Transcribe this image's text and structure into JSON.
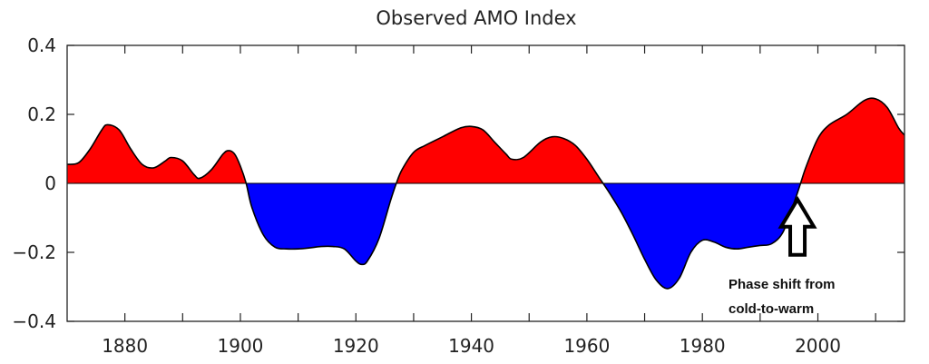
{
  "chart_data": {
    "type": "area",
    "title": "Observed AMO Index",
    "xlabel": "",
    "ylabel": "",
    "xlim": [
      1870,
      2015
    ],
    "ylim": [
      -0.4,
      0.4
    ],
    "grid": false,
    "x_ticks": [
      1880,
      1900,
      1920,
      1940,
      1960,
      1980,
      2000
    ],
    "x_tick_labels": [
      "1880",
      "1900",
      "1920",
      "1940",
      "1960",
      "1980",
      "2000"
    ],
    "x_minor_ticks": [
      1890,
      1910,
      1930,
      1950,
      1970,
      1990,
      2010
    ],
    "y_ticks": [
      0.4,
      0.2,
      0,
      -0.2,
      -0.4
    ],
    "y_tick_labels": [
      "0.4",
      "0.2",
      "0",
      "−0.2",
      "−0.4"
    ],
    "positive_color": "#ff0000",
    "negative_color": "#0000ff",
    "series": [
      {
        "name": "AMO Index",
        "x": [
          1870,
          1872,
          1874,
          1876,
          1877,
          1879,
          1881,
          1883,
          1885,
          1887,
          1888,
          1890,
          1892,
          1893,
          1895,
          1897,
          1898,
          1899,
          1900,
          1901,
          1902,
          1904,
          1906,
          1908,
          1910,
          1912,
          1914,
          1916,
          1918,
          1920,
          1921,
          1922,
          1924,
          1926,
          1927,
          1928,
          1930,
          1932,
          1935,
          1938,
          1940,
          1942,
          1944,
          1946,
          1947,
          1949,
          1952,
          1954,
          1956,
          1958,
          1960,
          1962,
          1964,
          1966,
          1968,
          1970,
          1972,
          1974,
          1976,
          1978,
          1980,
          1982,
          1984,
          1986,
          1988,
          1990,
          1992,
          1994,
          1996,
          1997,
          1998,
          2000,
          2002,
          2005,
          2008,
          2010,
          2012,
          2014,
          2015
        ],
        "y": [
          0.055,
          0.06,
          0.1,
          0.155,
          0.17,
          0.155,
          0.1,
          0.055,
          0.045,
          0.065,
          0.075,
          0.065,
          0.025,
          0.015,
          0.04,
          0.085,
          0.095,
          0.085,
          0.05,
          0.0,
          -0.07,
          -0.15,
          -0.185,
          -0.19,
          -0.19,
          -0.187,
          -0.183,
          -0.183,
          -0.19,
          -0.225,
          -0.235,
          -0.225,
          -0.16,
          -0.05,
          0.0,
          0.04,
          0.09,
          0.11,
          0.135,
          0.16,
          0.165,
          0.155,
          0.12,
          0.085,
          0.07,
          0.075,
          0.12,
          0.135,
          0.13,
          0.11,
          0.07,
          0.02,
          -0.03,
          -0.085,
          -0.15,
          -0.22,
          -0.28,
          -0.305,
          -0.275,
          -0.2,
          -0.165,
          -0.17,
          -0.185,
          -0.19,
          -0.185,
          -0.18,
          -0.175,
          -0.14,
          -0.05,
          0.0,
          0.05,
          0.13,
          0.17,
          0.2,
          0.24,
          0.245,
          0.22,
          0.16,
          0.14
        ]
      }
    ],
    "annotations": [
      {
        "text_lines": [
          "Phase shift from",
          "cold-to-warm"
        ],
        "x": 1996,
        "y": -0.015,
        "arrow": "up"
      }
    ]
  }
}
